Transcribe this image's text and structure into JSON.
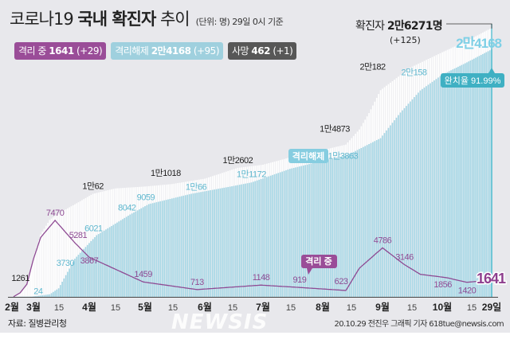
{
  "header": {
    "title_prefix": "코로나19",
    "title_bold": "국내 확진자",
    "title_suffix": "추이",
    "unit_note": "(단위: 명) 29일 0시 기준"
  },
  "badges": [
    {
      "label": "격리 중",
      "value": "1641",
      "delta": "(+29)",
      "color": "#9a4d98"
    },
    {
      "label": "격리해제",
      "value": "2만4168",
      "delta": "(+95)",
      "color": "#9fd0de"
    },
    {
      "label": "사망",
      "value": "462",
      "delta": "(+1)",
      "color": "#575757"
    }
  ],
  "totals": {
    "confirmed_label": "확진자",
    "confirmed_value": "2만6271명",
    "confirmed_delta": "(+125)",
    "released_value": "2만4168",
    "isolated_value": "1641",
    "recovery_rate_label": "완치율",
    "recovery_rate_value": "91.99%"
  },
  "annotations": {
    "released_tag": "격리해제",
    "isolated_tag": "격리 중"
  },
  "footer": {
    "source": "자료: 질병관리청",
    "credit": "20.10.29 전진우 그래픽 기자 618tue@newsis.com",
    "watermark": "NEWSIS"
  },
  "chart_data": {
    "type": "area",
    "title": "코로나19 국내 확진자 추이",
    "xlabel": "",
    "ylabel": "",
    "x_ticks": [
      "2월",
      "3월",
      "15",
      "4월",
      "15",
      "5월",
      "15",
      "6월",
      "15",
      "7월",
      "15",
      "8월",
      "15",
      "9월",
      "15",
      "10월",
      "15",
      "29일"
    ],
    "grid": false,
    "colors": {
      "confirmed": "#ffffff",
      "released": "#a8d8e6",
      "isolated": "#8e4a93",
      "accent": "#3bb3c8"
    },
    "series": [
      {
        "name": "확진자",
        "kind": "area",
        "points": [
          {
            "date": "02-18",
            "value": 31
          },
          {
            "date": "02-22",
            "value": 433
          },
          {
            "date": "02-26",
            "value": 1261,
            "label": "1261"
          },
          {
            "date": "03-01",
            "value": 3736
          },
          {
            "date": "03-05",
            "value": 6088
          },
          {
            "date": "03-10",
            "value": 7513
          },
          {
            "date": "03-15",
            "value": 8162
          },
          {
            "date": "03-25",
            "value": 9137
          },
          {
            "date": "04-03",
            "value": 10062,
            "label": "1만62"
          },
          {
            "date": "04-15",
            "value": 10591
          },
          {
            "date": "05-01",
            "value": 10774
          },
          {
            "date": "05-15",
            "value": 11018,
            "label": "1만1018"
          },
          {
            "date": "06-01",
            "value": 11541
          },
          {
            "date": "06-18",
            "value": 12602,
            "label": "1만2602"
          },
          {
            "date": "07-01",
            "value": 12904
          },
          {
            "date": "07-15",
            "value": 13612
          },
          {
            "date": "08-01",
            "value": 14336
          },
          {
            "date": "08-13",
            "value": 14873,
            "label": "1만4873"
          },
          {
            "date": "08-20",
            "value": 16346
          },
          {
            "date": "08-25",
            "value": 17945
          },
          {
            "date": "08-31",
            "value": 20182,
            "label": "2만182"
          },
          {
            "date": "09-15",
            "value": 22391
          },
          {
            "date": "10-01",
            "value": 23889
          },
          {
            "date": "10-15",
            "value": 24988
          },
          {
            "date": "10-29",
            "value": 26271
          }
        ]
      },
      {
        "name": "격리해제",
        "kind": "area",
        "points": [
          {
            "date": "02-18",
            "value": 12
          },
          {
            "date": "02-29",
            "value": 24,
            "label": "24"
          },
          {
            "date": "03-10",
            "value": 247
          },
          {
            "date": "03-15",
            "value": 834
          },
          {
            "date": "03-24",
            "value": 3730,
            "label": "3730"
          },
          {
            "date": "04-05",
            "value": 6021,
            "label": "6021"
          },
          {
            "date": "04-23",
            "value": 8042,
            "label": "8042"
          },
          {
            "date": "05-03",
            "value": 9059,
            "label": "9059"
          },
          {
            "date": "05-25",
            "value": 10066,
            "label": "1만66"
          },
          {
            "date": "06-15",
            "value": 10800
          },
          {
            "date": "06-25",
            "value": 11172,
            "label": "1만1172"
          },
          {
            "date": "07-15",
            "value": 12500
          },
          {
            "date": "08-01",
            "value": 13300
          },
          {
            "date": "08-14",
            "value": 13863,
            "label": "1만3863"
          },
          {
            "date": "08-31",
            "value": 15500
          },
          {
            "date": "09-10",
            "value": 18000
          },
          {
            "date": "09-20",
            "value": 20158,
            "label": "2만158"
          },
          {
            "date": "10-01",
            "value": 21700
          },
          {
            "date": "10-15",
            "value": 22900
          },
          {
            "date": "10-29",
            "value": 24168
          }
        ]
      },
      {
        "name": "격리 중",
        "kind": "line",
        "points": [
          {
            "date": "02-18",
            "value": 19
          },
          {
            "date": "02-22",
            "value": 400
          },
          {
            "date": "02-26",
            "value": 1230
          },
          {
            "date": "03-01",
            "value": 3700
          },
          {
            "date": "03-05",
            "value": 5800
          },
          {
            "date": "03-13",
            "value": 7470,
            "label": "7470"
          },
          {
            "date": "03-24",
            "value": 5281,
            "label": "5281"
          },
          {
            "date": "04-01",
            "value": 3867,
            "label": "3867"
          },
          {
            "date": "04-30",
            "value": 1459,
            "label": "1459"
          },
          {
            "date": "05-28",
            "value": 713,
            "label": "713"
          },
          {
            "date": "06-30",
            "value": 1148,
            "label": "1148"
          },
          {
            "date": "07-20",
            "value": 919,
            "label": "919"
          },
          {
            "date": "08-13",
            "value": 623,
            "label": "623"
          },
          {
            "date": "08-20",
            "value": 2800
          },
          {
            "date": "09-01",
            "value": 4786,
            "label": "4786"
          },
          {
            "date": "09-12",
            "value": 3146,
            "label": "3146"
          },
          {
            "date": "09-20",
            "value": 2200
          },
          {
            "date": "10-04",
            "value": 1856,
            "label": "1856"
          },
          {
            "date": "10-15",
            "value": 1420,
            "label": "1420"
          },
          {
            "date": "10-29",
            "value": 1641
          }
        ]
      }
    ],
    "ylim": [
      0,
      27000
    ]
  }
}
